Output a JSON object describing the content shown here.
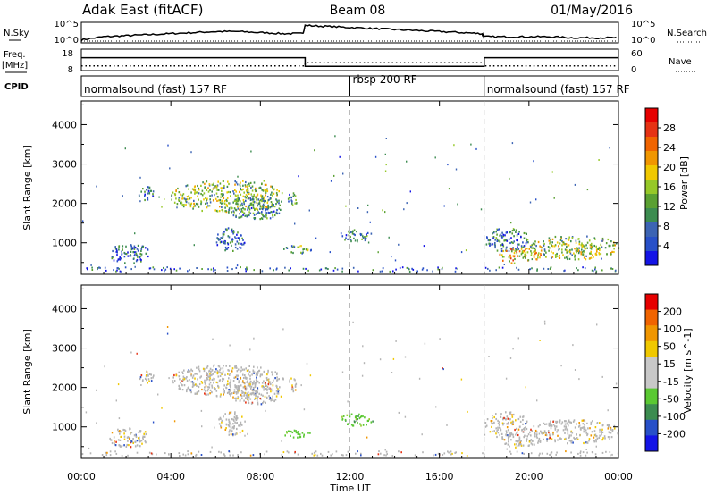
{
  "header": {
    "station": "Adak East (fitACF)",
    "beam": "Beam 08",
    "date": "01/May/2016"
  },
  "colors": {
    "power_scale": [
      "#1414e6",
      "#2850c8",
      "#3c64b4",
      "#3c8c50",
      "#5aa032",
      "#96c828",
      "#f0c800",
      "#f09600",
      "#f06400",
      "#e63214",
      "#e60000"
    ],
    "velocity_scale": [
      "#e60000",
      "#f06400",
      "#f09600",
      "#f0c800",
      "#c8c8c8",
      "#c8c8c8",
      "#5ac832",
      "#3c8c50",
      "#2850c8",
      "#1414e6"
    ],
    "ground_scatter": "#b4b4b4"
  },
  "chart_data": [
    {
      "type": "line",
      "panel": "nsky",
      "labels": {
        "left": "N.Sky",
        "right": "N.Search"
      },
      "yticks_left": [
        "10^5",
        "10^0"
      ],
      "yticks_right": [
        "10^5",
        "10^0"
      ],
      "x": [
        0,
        1,
        2,
        3,
        4,
        5,
        6,
        7,
        8,
        9,
        9.9,
        10,
        11,
        12,
        13,
        14,
        15,
        16,
        17,
        17.9,
        18,
        19,
        20,
        21,
        22,
        23,
        24
      ],
      "y_fraction": [
        0.15,
        0.3,
        0.35,
        0.4,
        0.45,
        0.5,
        0.55,
        0.55,
        0.5,
        0.45,
        0.45,
        0.85,
        0.8,
        0.75,
        0.7,
        0.65,
        0.6,
        0.55,
        0.5,
        0.45,
        0.3,
        0.3,
        0.3,
        0.3,
        0.25,
        0.25,
        0.25
      ]
    },
    {
      "type": "line",
      "panel": "freq",
      "labels": {
        "left": "Freq.",
        "left_unit": "[MHz]",
        "right": "Nave"
      },
      "yticks_left": [
        "18",
        "8"
      ],
      "yticks_right": [
        "60",
        "0"
      ],
      "freq_segments": [
        {
          "x": [
            0,
            10
          ],
          "y": 14
        },
        {
          "x": [
            10,
            18
          ],
          "y": 10
        },
        {
          "x": [
            18,
            24
          ],
          "y": 14
        }
      ],
      "nave_segments": [
        {
          "x": [
            0,
            10
          ],
          "y": 13
        },
        {
          "x": [
            10,
            18
          ],
          "y": 22
        },
        {
          "x": [
            18,
            24
          ],
          "y": 13
        }
      ]
    },
    {
      "type": "table",
      "panel": "cpid",
      "label": "CPID",
      "entries": [
        {
          "x": 0,
          "text": "normalsound (fast) 157 RF"
        },
        {
          "x": 12,
          "text": "rbsp 200 RF"
        },
        {
          "x": 18,
          "text": "normalsound (fast) 157 RF"
        }
      ]
    },
    {
      "type": "heatmap",
      "title": "Power",
      "ylabel": "Slant Range [km]",
      "ylim": [
        200,
        4600
      ],
      "yticks": [
        "1000",
        "2000",
        "3000",
        "4000"
      ],
      "xlim": [
        0,
        24
      ],
      "colorbar": {
        "label": "Power [dB]",
        "range": [
          0,
          32
        ],
        "ticks": [
          "4",
          "8",
          "12",
          "16",
          "20",
          "24",
          "28"
        ]
      },
      "regions": [
        {
          "t": [
            1.2,
            3.0
          ],
          "r": [
            500,
            1000
          ],
          "level": 0.2
        },
        {
          "t": [
            2.5,
            3.2
          ],
          "r": [
            2100,
            2450
          ],
          "level": 0.25
        },
        {
          "t": [
            4.0,
            9.0
          ],
          "r": [
            1800,
            2600
          ],
          "level": 0.45
        },
        {
          "t": [
            6.5,
            9.0
          ],
          "r": [
            1600,
            2200
          ],
          "level": 0.3
        },
        {
          "t": [
            9.2,
            9.6
          ],
          "r": [
            1900,
            2300
          ],
          "level": 0.3
        },
        {
          "t": [
            6.0,
            7.3
          ],
          "r": [
            800,
            1400
          ],
          "level": 0.2
        },
        {
          "t": [
            9.0,
            10.3
          ],
          "r": [
            750,
            950
          ],
          "level": 0.35
        },
        {
          "t": [
            11.5,
            13.0
          ],
          "r": [
            1050,
            1350
          ],
          "level": 0.3
        },
        {
          "t": [
            18.0,
            20.0
          ],
          "r": [
            800,
            1400
          ],
          "level": 0.25
        },
        {
          "t": [
            18.5,
            20.5
          ],
          "r": [
            500,
            900
          ],
          "level": 0.6
        },
        {
          "t": [
            20.0,
            24.0
          ],
          "r": [
            600,
            1200
          ],
          "level": 0.45
        }
      ]
    },
    {
      "type": "heatmap",
      "title": "Velocity",
      "ylabel": "Slant Range [km]",
      "ylim": [
        200,
        4600
      ],
      "yticks": [
        "1000",
        "2000",
        "3000",
        "4000"
      ],
      "xlim": [
        0,
        24
      ],
      "colorbar": {
        "label": "Velocity [m s^-1]",
        "ticks": [
          "200",
          "100",
          "50",
          "15",
          "-15",
          "-50",
          "-100",
          "-200"
        ]
      },
      "regions": [
        {
          "t": [
            1.2,
            3.0
          ],
          "r": [
            500,
            1000
          ],
          "kind": "ground"
        },
        {
          "t": [
            2.5,
            3.2
          ],
          "r": [
            2100,
            2450
          ],
          "kind": "ground"
        },
        {
          "t": [
            4.0,
            9.0
          ],
          "r": [
            1800,
            2600
          ],
          "kind": "ground"
        },
        {
          "t": [
            6.5,
            9.0
          ],
          "r": [
            1600,
            2200
          ],
          "kind": "ground"
        },
        {
          "t": [
            9.2,
            9.6
          ],
          "r": [
            1900,
            2300
          ],
          "kind": "ground"
        },
        {
          "t": [
            6.0,
            7.3
          ],
          "r": [
            800,
            1400
          ],
          "kind": "ground"
        },
        {
          "t": [
            9.0,
            10.3
          ],
          "r": [
            750,
            950
          ],
          "kind": "green"
        },
        {
          "t": [
            11.5,
            13.0
          ],
          "r": [
            1050,
            1350
          ],
          "kind": "green"
        },
        {
          "t": [
            18.0,
            20.0
          ],
          "r": [
            800,
            1400
          ],
          "kind": "ground"
        },
        {
          "t": [
            18.5,
            20.5
          ],
          "r": [
            500,
            900
          ],
          "kind": "ground"
        },
        {
          "t": [
            20.0,
            24.0
          ],
          "r": [
            600,
            1200
          ],
          "kind": "ground"
        }
      ]
    }
  ],
  "xaxis": {
    "label": "Time UT",
    "ticks": [
      "00:00",
      "04:00",
      "08:00",
      "12:00",
      "16:00",
      "20:00",
      "00:00"
    ],
    "tick_hours": [
      0,
      4,
      8,
      12,
      16,
      20,
      24
    ],
    "dashed_hours": [
      12,
      18
    ]
  }
}
